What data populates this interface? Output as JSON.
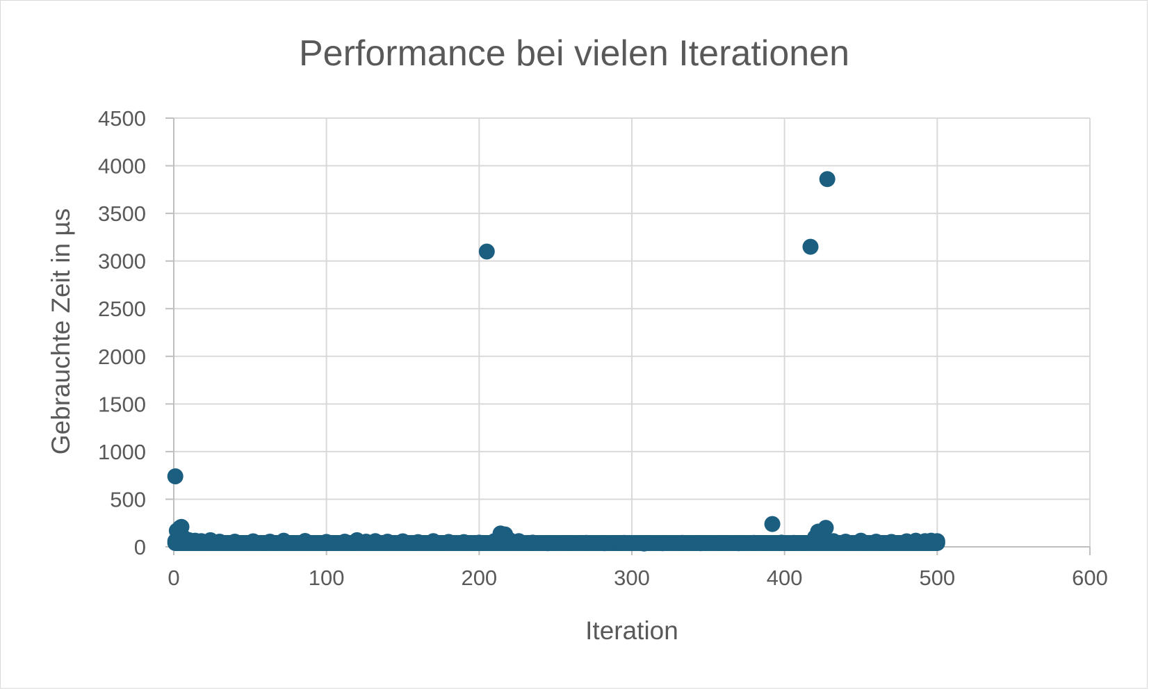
{
  "chart_data": {
    "type": "scatter",
    "title": "Performance bei vielen Iterationen",
    "xlabel": "Iteration",
    "ylabel": "Gebrauchte Zeit in µs",
    "xlim": [
      0,
      600
    ],
    "ylim": [
      0,
      4500
    ],
    "xticks": [
      "0",
      "100",
      "200",
      "300",
      "400",
      "500",
      "600"
    ],
    "yticks": [
      "0",
      "500",
      "1000",
      "1500",
      "2000",
      "2500",
      "3000",
      "3500",
      "4000",
      "4500"
    ],
    "grid": true,
    "legend": "none",
    "marker_color": "#1b5e7f",
    "baseline_y": 40,
    "series": [
      {
        "points": [
          [
            1,
            740
          ],
          [
            1,
            60
          ],
          [
            2,
            170
          ],
          [
            4,
            200
          ],
          [
            5,
            210
          ],
          [
            7,
            90
          ],
          [
            10,
            70
          ],
          [
            14,
            65
          ],
          [
            18,
            60
          ],
          [
            24,
            70
          ],
          [
            30,
            55
          ],
          [
            40,
            55
          ],
          [
            52,
            58
          ],
          [
            63,
            55
          ],
          [
            72,
            65
          ],
          [
            86,
            62
          ],
          [
            100,
            52
          ],
          [
            112,
            55
          ],
          [
            120,
            70
          ],
          [
            126,
            55
          ],
          [
            132,
            60
          ],
          [
            140,
            55
          ],
          [
            150,
            58
          ],
          [
            160,
            50
          ],
          [
            170,
            60
          ],
          [
            180,
            52
          ],
          [
            190,
            50
          ],
          [
            200,
            45
          ],
          [
            205,
            3100
          ],
          [
            210,
            60
          ],
          [
            214,
            140
          ],
          [
            217,
            130
          ],
          [
            220,
            70
          ],
          [
            226,
            60
          ],
          [
            235,
            45
          ],
          [
            245,
            38
          ],
          [
            258,
            40
          ],
          [
            270,
            42
          ],
          [
            282,
            38
          ],
          [
            295,
            42
          ],
          [
            308,
            35
          ],
          [
            320,
            38
          ],
          [
            333,
            42
          ],
          [
            345,
            38
          ],
          [
            358,
            40
          ],
          [
            370,
            38
          ],
          [
            380,
            42
          ],
          [
            388,
            40
          ],
          [
            392,
            240
          ],
          [
            398,
            45
          ],
          [
            406,
            42
          ],
          [
            412,
            40
          ],
          [
            417,
            3150
          ],
          [
            420,
            100
          ],
          [
            422,
            160
          ],
          [
            425,
            120
          ],
          [
            427,
            200
          ],
          [
            428,
            3860
          ],
          [
            432,
            60
          ],
          [
            440,
            55
          ],
          [
            450,
            65
          ],
          [
            460,
            55
          ],
          [
            470,
            52
          ],
          [
            480,
            58
          ],
          [
            486,
            65
          ],
          [
            492,
            60
          ],
          [
            496,
            65
          ],
          [
            500,
            60
          ]
        ]
      }
    ]
  }
}
